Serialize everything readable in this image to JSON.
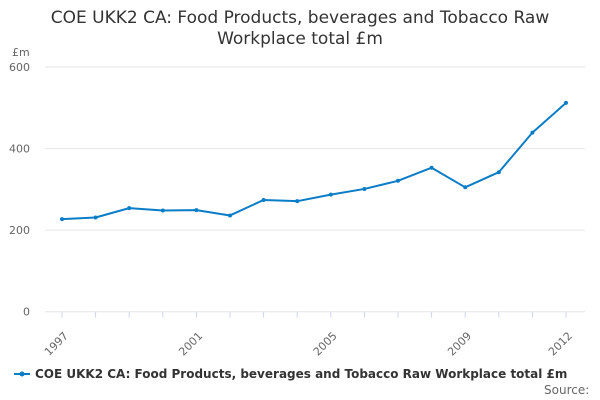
{
  "chart_data": {
    "type": "line",
    "title": "COE UKK2 CA: Food Products, beverages and Tobacco Raw Workplace total £m",
    "title_lines": [
      "COE UKK2 CA: Food Products, beverages and Tobacco Raw",
      "Workplace total £m"
    ],
    "ylabel": "£m",
    "xlabel": "",
    "ylim": [
      0,
      600
    ],
    "yticks": [
      0,
      200,
      400,
      600
    ],
    "xticks": [
      1997,
      2001,
      2005,
      2009,
      2012
    ],
    "grid": true,
    "legend_position": "bottom",
    "series": [
      {
        "name": "COE UKK2 CA: Food Products, beverages and Tobacco Raw Workplace total £m",
        "color": "#0a7dc6",
        "x": [
          1997,
          1998,
          1999,
          2000,
          2001,
          2002,
          2003,
          2004,
          2005,
          2006,
          2007,
          2008,
          2009,
          2010,
          2011,
          2012
        ],
        "values": [
          227,
          231,
          254,
          248,
          249,
          236,
          274,
          271,
          287,
          301,
          321,
          353,
          305,
          342,
          439,
          512
        ]
      }
    ]
  },
  "source_label": "Source:"
}
